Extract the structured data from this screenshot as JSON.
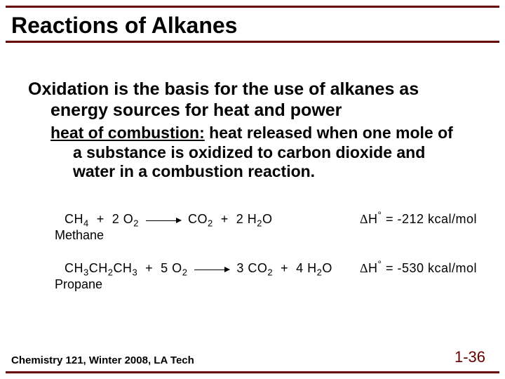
{
  "title": "Reactions of Alkanes",
  "subheading": {
    "line1": "Oxidation is the basis for the use of alkanes as",
    "line2": "energy sources for heat and power"
  },
  "definition": {
    "term": "heat of combustion:",
    "rest1": " heat released when one mole of",
    "rest2": "a substance is oxidized to carbon dioxide and",
    "rest3": "water in a combustion reaction."
  },
  "equations": {
    "eq1": {
      "lhs_a": "CH",
      "lhs_a_sub": "4",
      "plus1": "  +  ",
      "coef1": "2 O",
      "coef1_sub": "2",
      "rhs_a": "CO",
      "rhs_a_sub": "2",
      "plus2": "  +  ",
      "coef2": "2 H",
      "coef2_sub": "2",
      "rhs_b": "O",
      "dh_label": "H",
      "dh_value": " = -212 kcal/mol",
      "name": "Methane"
    },
    "eq2": {
      "lhs_a": "CH",
      "lhs_a_sub": "3",
      "lhs_b": "CH",
      "lhs_b_sub": "2",
      "lhs_c": "CH",
      "lhs_c_sub": "3",
      "plus1": "  +  ",
      "coef1": "5 O",
      "coef1_sub": "2",
      "rhs_coef_a": "3 CO",
      "rhs_a_sub": "2",
      "plus2": "  +  ",
      "coef2": "4 H",
      "coef2_sub": "2",
      "rhs_b": "O",
      "dh_label": "H",
      "dh_value": " = -530 kcal/mol",
      "name": "Propane"
    }
  },
  "footer": {
    "left": "Chemistry 121, Winter 2008, LA Tech",
    "right": "1-36"
  },
  "colors": {
    "accent": "#660000",
    "text": "#000000",
    "bg": "#ffffff"
  }
}
